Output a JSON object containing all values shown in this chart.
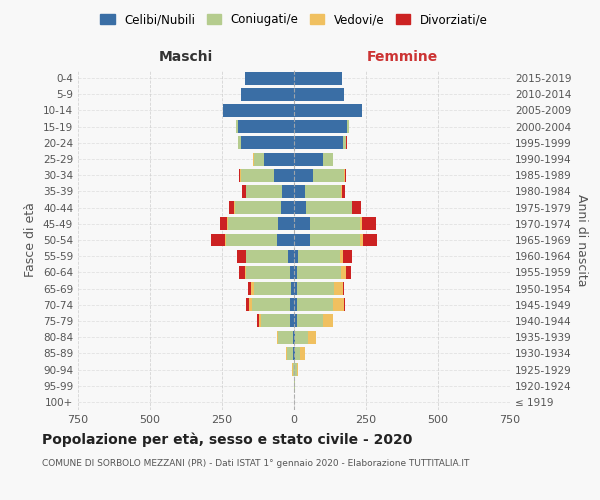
{
  "age_groups": [
    "100+",
    "95-99",
    "90-94",
    "85-89",
    "80-84",
    "75-79",
    "70-74",
    "65-69",
    "60-64",
    "55-59",
    "50-54",
    "45-49",
    "40-44",
    "35-39",
    "30-34",
    "25-29",
    "20-24",
    "15-19",
    "10-14",
    "5-9",
    "0-4"
  ],
  "birth_years": [
    "≤ 1919",
    "1920-1924",
    "1925-1929",
    "1930-1934",
    "1935-1939",
    "1940-1944",
    "1945-1949",
    "1950-1954",
    "1955-1959",
    "1960-1964",
    "1965-1969",
    "1970-1974",
    "1975-1979",
    "1980-1984",
    "1985-1989",
    "1990-1994",
    "1995-1999",
    "2000-2004",
    "2005-2009",
    "2010-2014",
    "2015-2019"
  ],
  "maschi": {
    "celibi": [
      0,
      0,
      1,
      3,
      5,
      15,
      15,
      10,
      15,
      20,
      60,
      55,
      45,
      40,
      70,
      105,
      185,
      195,
      245,
      185,
      170
    ],
    "coniugati": [
      0,
      1,
      4,
      22,
      50,
      100,
      130,
      130,
      150,
      145,
      175,
      175,
      160,
      125,
      115,
      35,
      10,
      5,
      0,
      0,
      0
    ],
    "vedovi": [
      0,
      0,
      1,
      2,
      4,
      8,
      10,
      8,
      5,
      3,
      3,
      3,
      2,
      2,
      1,
      1,
      0,
      0,
      0,
      0,
      0
    ],
    "divorziati": [
      0,
      0,
      0,
      0,
      0,
      5,
      10,
      10,
      20,
      30,
      50,
      25,
      20,
      15,
      5,
      2,
      0,
      0,
      0,
      0,
      0
    ]
  },
  "femmine": {
    "nubili": [
      0,
      0,
      1,
      2,
      5,
      10,
      12,
      10,
      12,
      15,
      55,
      55,
      40,
      38,
      65,
      100,
      170,
      185,
      235,
      175,
      165
    ],
    "coniugate": [
      0,
      3,
      8,
      20,
      45,
      90,
      125,
      130,
      150,
      145,
      175,
      175,
      160,
      125,
      110,
      35,
      12,
      5,
      0,
      0,
      0
    ],
    "vedove": [
      0,
      2,
      5,
      15,
      25,
      35,
      35,
      30,
      20,
      10,
      8,
      5,
      3,
      2,
      1,
      0,
      0,
      0,
      0,
      0,
      0
    ],
    "divorziate": [
      0,
      0,
      0,
      0,
      1,
      2,
      5,
      5,
      15,
      30,
      50,
      50,
      30,
      12,
      5,
      2,
      1,
      0,
      0,
      0,
      0
    ]
  },
  "colors": {
    "celibi": "#3a6ea5",
    "coniugati": "#b5cc8e",
    "vedovi": "#f0c060",
    "divorziati": "#cc2222"
  },
  "xlim": 750,
  "title": "Popolazione per età, sesso e stato civile - 2020",
  "subtitle": "COMUNE DI SORBOLO MEZZANI (PR) - Dati ISTAT 1° gennaio 2020 - Elaborazione TUTTITALIA.IT",
  "xlabel_left": "Maschi",
  "xlabel_right": "Femmine",
  "ylabel_left": "Fasce di età",
  "ylabel_right": "Anni di nascita",
  "legend_labels": [
    "Celibi/Nubili",
    "Coniugati/e",
    "Vedovi/e",
    "Divorziati/e"
  ],
  "bg_color": "#f8f8f8",
  "grid_color": "#cccccc"
}
